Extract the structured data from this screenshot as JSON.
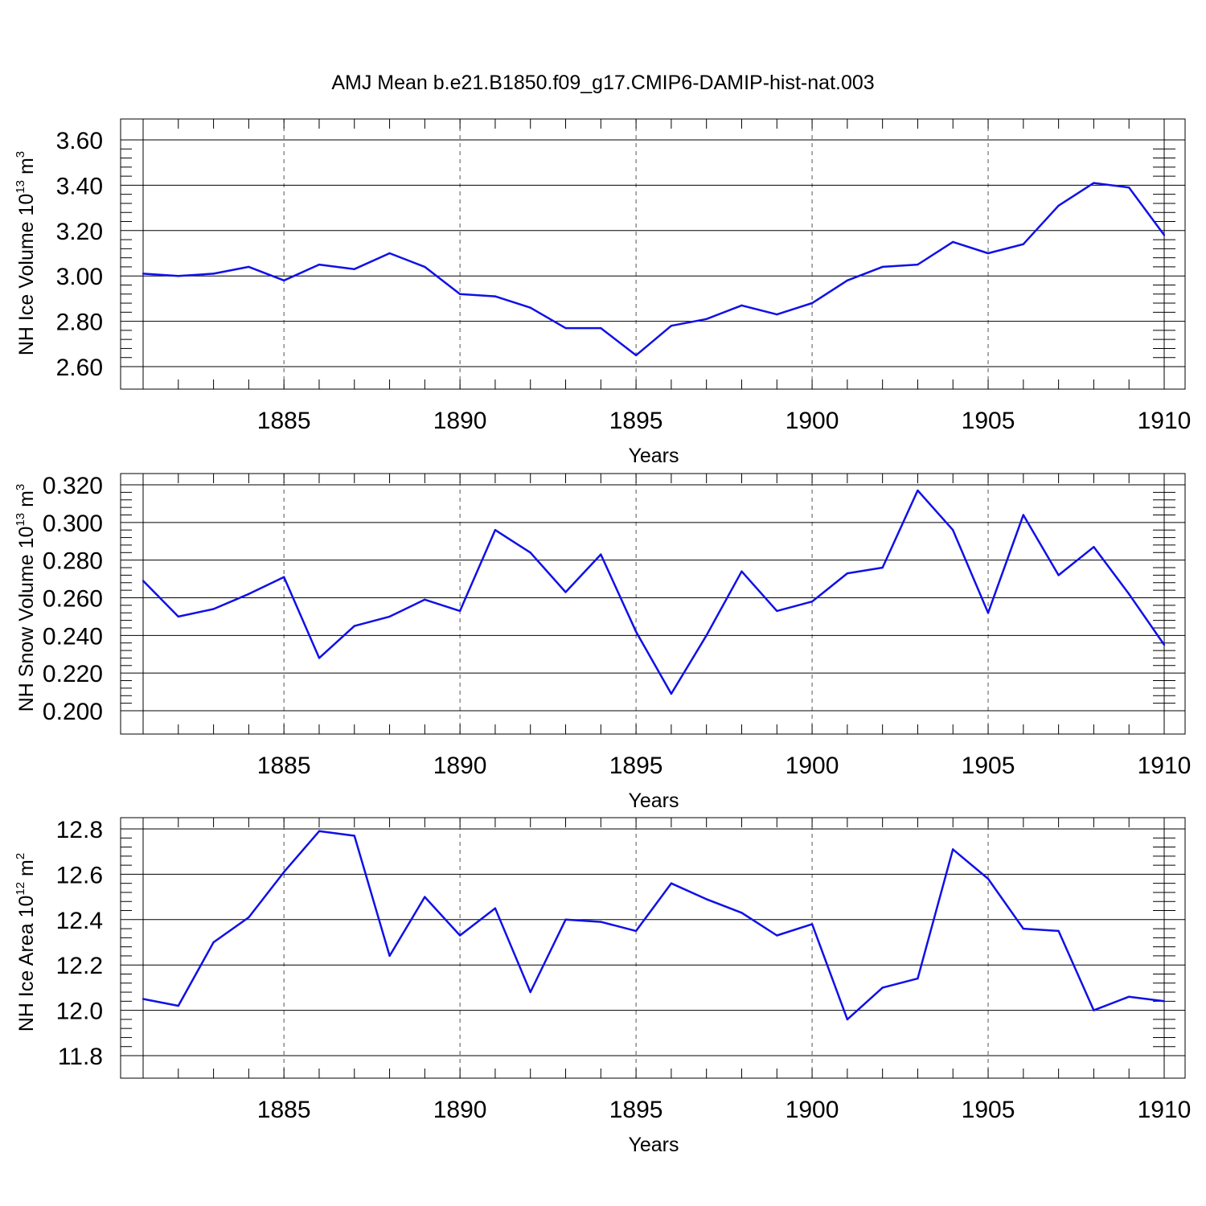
{
  "title": "AMJ Mean b.e21.B1850.f09_g17.CMIP6-DAMIP-hist-nat.003",
  "chart_data": [
    {
      "type": "line",
      "xlabel": "Years",
      "ylabel": {
        "text": "NH Ice Volume 10",
        "exponent": "13",
        "unit": "m",
        "unit_exponent": "3"
      },
      "xlim": [
        1881,
        1910
      ],
      "ylim": [
        2.6,
        3.6
      ],
      "y_ticks": [
        "2.60",
        "2.80",
        "3.00",
        "3.20",
        "3.40",
        "3.60"
      ],
      "x_ticks": [
        "1885",
        "1890",
        "1895",
        "1900",
        "1905",
        "1910"
      ],
      "line_color": "#1010e8",
      "grid": "vertical dashed at major x ticks",
      "x": [
        1881,
        1882,
        1883,
        1884,
        1885,
        1886,
        1887,
        1888,
        1889,
        1890,
        1891,
        1892,
        1893,
        1894,
        1895,
        1896,
        1897,
        1898,
        1899,
        1900,
        1901,
        1902,
        1903,
        1904,
        1905,
        1906,
        1907,
        1908,
        1909,
        1910
      ],
      "values": [
        3.01,
        3.0,
        3.01,
        3.04,
        2.98,
        3.05,
        3.03,
        3.1,
        3.04,
        2.92,
        2.91,
        2.86,
        2.77,
        2.77,
        2.65,
        2.78,
        2.81,
        2.87,
        2.83,
        2.88,
        2.98,
        3.04,
        3.05,
        3.15,
        3.1,
        3.14,
        3.31,
        3.41,
        3.39,
        3.18
      ]
    },
    {
      "type": "line",
      "xlabel": "Years",
      "ylabel": {
        "text": "NH Snow Volume 10",
        "exponent": "13",
        "unit": "m",
        "unit_exponent": "3"
      },
      "xlim": [
        1881,
        1910
      ],
      "ylim": [
        0.2,
        0.32
      ],
      "y_ticks": [
        "0.200",
        "0.220",
        "0.240",
        "0.260",
        "0.280",
        "0.300",
        "0.320"
      ],
      "x_ticks": [
        "1885",
        "1890",
        "1895",
        "1900",
        "1905",
        "1910"
      ],
      "line_color": "#1010e8",
      "grid": "vertical dashed at major x ticks",
      "x": [
        1881,
        1882,
        1883,
        1884,
        1885,
        1886,
        1887,
        1888,
        1889,
        1890,
        1891,
        1892,
        1893,
        1894,
        1895,
        1896,
        1897,
        1898,
        1899,
        1900,
        1901,
        1902,
        1903,
        1904,
        1905,
        1906,
        1907,
        1908,
        1909,
        1910
      ],
      "values": [
        0.269,
        0.25,
        0.254,
        0.262,
        0.271,
        0.228,
        0.245,
        0.25,
        0.259,
        0.253,
        0.296,
        0.284,
        0.263,
        0.283,
        0.242,
        0.209,
        0.24,
        0.274,
        0.253,
        0.258,
        0.273,
        0.276,
        0.317,
        0.296,
        0.252,
        0.304,
        0.272,
        0.287,
        0.262,
        0.235
      ]
    },
    {
      "type": "line",
      "xlabel": "Years",
      "ylabel": {
        "text": "NH Ice Area 10",
        "exponent": "12",
        "unit": "m",
        "unit_exponent": "2"
      },
      "xlim": [
        1881,
        1910
      ],
      "ylim": [
        11.8,
        12.8
      ],
      "y_ticks": [
        "11.8",
        "12.0",
        "12.2",
        "12.4",
        "12.6",
        "12.8"
      ],
      "x_ticks": [
        "1885",
        "1890",
        "1895",
        "1900",
        "1905",
        "1910"
      ],
      "line_color": "#1010e8",
      "grid": "vertical dashed at major x ticks",
      "x": [
        1881,
        1882,
        1883,
        1884,
        1885,
        1886,
        1887,
        1888,
        1889,
        1890,
        1891,
        1892,
        1893,
        1894,
        1895,
        1896,
        1897,
        1898,
        1899,
        1900,
        1901,
        1902,
        1903,
        1904,
        1905,
        1906,
        1907,
        1908,
        1909,
        1910
      ],
      "values": [
        12.05,
        12.02,
        12.3,
        12.41,
        12.61,
        12.79,
        12.77,
        12.24,
        12.5,
        12.33,
        12.45,
        12.08,
        12.4,
        12.39,
        12.35,
        12.56,
        12.49,
        12.43,
        12.33,
        12.38,
        11.96,
        12.1,
        12.14,
        12.71,
        12.58,
        12.36,
        12.35,
        12.0,
        12.06,
        12.04
      ]
    }
  ]
}
